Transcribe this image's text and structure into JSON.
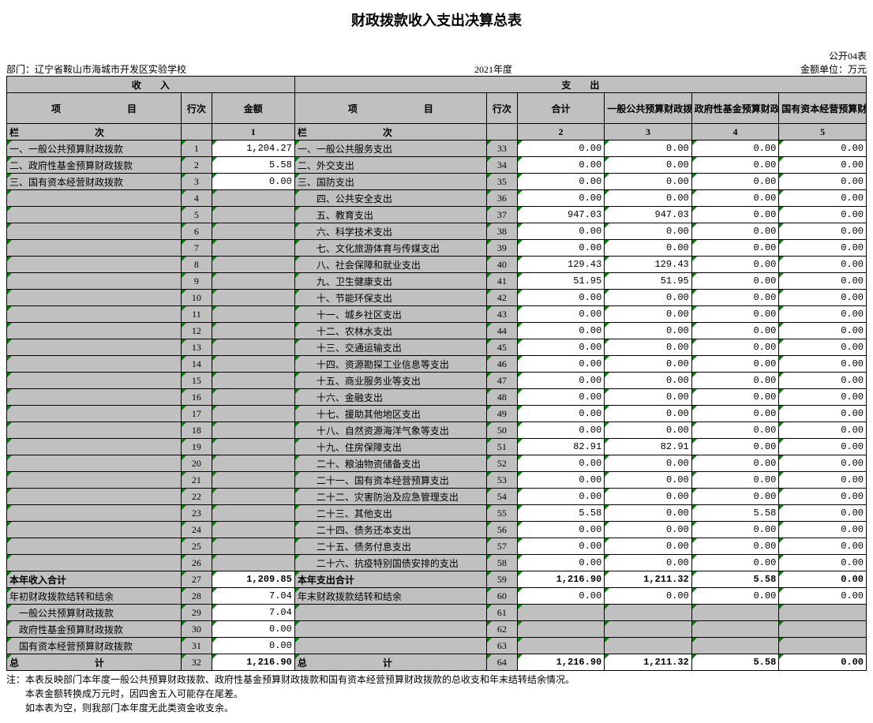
{
  "title": "财政拨款收入支出决算总表",
  "meta": {
    "form_no": "公开04表",
    "dept_label": "部门：",
    "dept": "辽宁省鞍山市海城市开发区实验学校",
    "year": "2021年度",
    "unit": "金额单位：万元"
  },
  "headers": {
    "income": "收　　入",
    "expend": "支　　出",
    "item": "项　　　　　　　目",
    "line": "行次",
    "amount": "金额",
    "total": "合计",
    "c3": "一般公共预算财政拨款",
    "c4": "政府性基金预算财政拨款",
    "c5": "国有资本经营预算财政拨款",
    "col_label_left": "栏　　　　　　　　次",
    "col_label_right": "栏　　　　　　　　次",
    "n1": "1",
    "n2": "2",
    "n3": "3",
    "n4": "4",
    "n5": "5"
  },
  "income_rows": [
    {
      "item": "一、一般公共预算财政拨款",
      "line": "1",
      "amount": "1,204.27"
    },
    {
      "item": "二、政府性基金预算财政拨款",
      "line": "2",
      "amount": "5.58"
    },
    {
      "item": "三、国有资本经营财政拨款",
      "line": "3",
      "amount": "0.00"
    },
    {
      "item": "",
      "line": "4",
      "amount": ""
    },
    {
      "item": "",
      "line": "5",
      "amount": ""
    },
    {
      "item": "",
      "line": "6",
      "amount": ""
    },
    {
      "item": "",
      "line": "7",
      "amount": ""
    },
    {
      "item": "",
      "line": "8",
      "amount": ""
    },
    {
      "item": "",
      "line": "9",
      "amount": ""
    },
    {
      "item": "",
      "line": "10",
      "amount": ""
    },
    {
      "item": "",
      "line": "11",
      "amount": ""
    },
    {
      "item": "",
      "line": "12",
      "amount": ""
    },
    {
      "item": "",
      "line": "13",
      "amount": ""
    },
    {
      "item": "",
      "line": "14",
      "amount": ""
    },
    {
      "item": "",
      "line": "15",
      "amount": ""
    },
    {
      "item": "",
      "line": "16",
      "amount": ""
    },
    {
      "item": "",
      "line": "17",
      "amount": ""
    },
    {
      "item": "",
      "line": "18",
      "amount": ""
    },
    {
      "item": "",
      "line": "19",
      "amount": ""
    },
    {
      "item": "",
      "line": "20",
      "amount": ""
    },
    {
      "item": "",
      "line": "21",
      "amount": ""
    },
    {
      "item": "",
      "line": "22",
      "amount": ""
    },
    {
      "item": "",
      "line": "23",
      "amount": ""
    },
    {
      "item": "",
      "line": "24",
      "amount": ""
    },
    {
      "item": "",
      "line": "25",
      "amount": ""
    },
    {
      "item": "",
      "line": "26",
      "amount": ""
    },
    {
      "item": "本年收入合计",
      "line": "27",
      "amount": "1,209.85",
      "bold": true,
      "center": true
    },
    {
      "item": "年初财政拨款结转和结余",
      "line": "28",
      "amount": "7.04"
    },
    {
      "item": "　一般公共预算财政拨款",
      "line": "29",
      "amount": "7.04"
    },
    {
      "item": "　政府性基金预算财政拨款",
      "line": "30",
      "amount": "0.00"
    },
    {
      "item": "　国有资本经营预算财政拨款",
      "line": "31",
      "amount": "0.00"
    },
    {
      "item": "总　　　　　　　　计",
      "line": "32",
      "amount": "1,216.90",
      "bold": true
    }
  ],
  "expend_rows": [
    {
      "item": "一、一般公共服务支出",
      "line": "33",
      "c2": "0.00",
      "c3": "0.00",
      "c4": "0.00",
      "c5": "0.00"
    },
    {
      "item": "二、外交支出",
      "line": "34",
      "c2": "0.00",
      "c3": "0.00",
      "c4": "0.00",
      "c5": "0.00"
    },
    {
      "item": "三、国防支出",
      "line": "35",
      "c2": "0.00",
      "c3": "0.00",
      "c4": "0.00",
      "c5": "0.00"
    },
    {
      "item": "　　四、公共安全支出",
      "line": "36",
      "c2": "0.00",
      "c3": "0.00",
      "c4": "0.00",
      "c5": "0.00"
    },
    {
      "item": "　　五、教育支出",
      "line": "37",
      "c2": "947.03",
      "c3": "947.03",
      "c4": "0.00",
      "c5": "0.00"
    },
    {
      "item": "　　六、科学技术支出",
      "line": "38",
      "c2": "0.00",
      "c3": "0.00",
      "c4": "0.00",
      "c5": "0.00"
    },
    {
      "item": "　　七、文化旅游体育与传媒支出",
      "line": "39",
      "c2": "0.00",
      "c3": "0.00",
      "c4": "0.00",
      "c5": "0.00"
    },
    {
      "item": "　　八、社会保障和就业支出",
      "line": "40",
      "c2": "129.43",
      "c3": "129.43",
      "c4": "0.00",
      "c5": "0.00"
    },
    {
      "item": "　　九、卫生健康支出",
      "line": "41",
      "c2": "51.95",
      "c3": "51.95",
      "c4": "0.00",
      "c5": "0.00"
    },
    {
      "item": "　　十、节能环保支出",
      "line": "42",
      "c2": "0.00",
      "c3": "0.00",
      "c4": "0.00",
      "c5": "0.00"
    },
    {
      "item": "　　十一、城乡社区支出",
      "line": "43",
      "c2": "0.00",
      "c3": "0.00",
      "c4": "0.00",
      "c5": "0.00"
    },
    {
      "item": "　　十二、农林水支出",
      "line": "44",
      "c2": "0.00",
      "c3": "0.00",
      "c4": "0.00",
      "c5": "0.00"
    },
    {
      "item": "　　十三、交通运输支出",
      "line": "45",
      "c2": "0.00",
      "c3": "0.00",
      "c4": "0.00",
      "c5": "0.00"
    },
    {
      "item": "　　十四、资源勘探工业信息等支出",
      "line": "46",
      "c2": "0.00",
      "c3": "0.00",
      "c4": "0.00",
      "c5": "0.00"
    },
    {
      "item": "　　十五、商业服务业等支出",
      "line": "47",
      "c2": "0.00",
      "c3": "0.00",
      "c4": "0.00",
      "c5": "0.00"
    },
    {
      "item": "　　十六、金融支出",
      "line": "48",
      "c2": "0.00",
      "c3": "0.00",
      "c4": "0.00",
      "c5": "0.00"
    },
    {
      "item": "　　十七、援助其他地区支出",
      "line": "49",
      "c2": "0.00",
      "c3": "0.00",
      "c4": "0.00",
      "c5": "0.00"
    },
    {
      "item": "　　十八、自然资源海洋气象等支出",
      "line": "50",
      "c2": "0.00",
      "c3": "0.00",
      "c4": "0.00",
      "c5": "0.00"
    },
    {
      "item": "　　十九、住房保障支出",
      "line": "51",
      "c2": "82.91",
      "c3": "82.91",
      "c4": "0.00",
      "c5": "0.00"
    },
    {
      "item": "　　二十、粮油物资储备支出",
      "line": "52",
      "c2": "0.00",
      "c3": "0.00",
      "c4": "0.00",
      "c5": "0.00"
    },
    {
      "item": "　　二十一、国有资本经营预算支出",
      "line": "53",
      "c2": "0.00",
      "c3": "0.00",
      "c4": "0.00",
      "c5": "0.00"
    },
    {
      "item": "　　二十二、灾害防治及应急管理支出",
      "line": "54",
      "c2": "0.00",
      "c3": "0.00",
      "c4": "0.00",
      "c5": "0.00"
    },
    {
      "item": "　　二十三、其他支出",
      "line": "55",
      "c2": "5.58",
      "c3": "0.00",
      "c4": "5.58",
      "c5": "0.00"
    },
    {
      "item": "　　二十四、债务还本支出",
      "line": "56",
      "c2": "0.00",
      "c3": "0.00",
      "c4": "0.00",
      "c5": "0.00"
    },
    {
      "item": "　　二十五、债务付息支出",
      "line": "57",
      "c2": "0.00",
      "c3": "0.00",
      "c4": "0.00",
      "c5": "0.00"
    },
    {
      "item": "　　二十六、抗疫特别国债安排的支出",
      "line": "58",
      "c2": "0.00",
      "c3": "0.00",
      "c4": "0.00",
      "c5": "0.00"
    },
    {
      "item": "本年支出合计",
      "line": "59",
      "c2": "1,216.90",
      "c3": "1,211.32",
      "c4": "5.58",
      "c5": "0.00",
      "bold": true,
      "center": true
    },
    {
      "item": "年末财政拨款结转和结余",
      "line": "60",
      "c2": "0.00",
      "c3": "0.00",
      "c4": "0.00",
      "c5": "0.00"
    },
    {
      "item": "",
      "line": "61",
      "c2": "",
      "c3": "",
      "c4": "",
      "c5": ""
    },
    {
      "item": "",
      "line": "62",
      "c2": "",
      "c3": "",
      "c4": "",
      "c5": ""
    },
    {
      "item": "",
      "line": "63",
      "c2": "",
      "c3": "",
      "c4": "",
      "c5": ""
    },
    {
      "item": "总　　　　　　　　计",
      "line": "64",
      "c2": "1,216.90",
      "c3": "1,211.32",
      "c4": "5.58",
      "c5": "0.00",
      "bold": true
    }
  ],
  "notes": [
    "注：本表反映部门本年度一般公共预算财政拨款、政府性基金预算财政拨款和国有资本经营预算财政拨款的总收支和年末结转结余情况。",
    "　　本表金额转换成万元时，因四舍五入可能存在尾差。",
    "　　如本表为空，则我部门本年度无此类资金收支余。"
  ]
}
